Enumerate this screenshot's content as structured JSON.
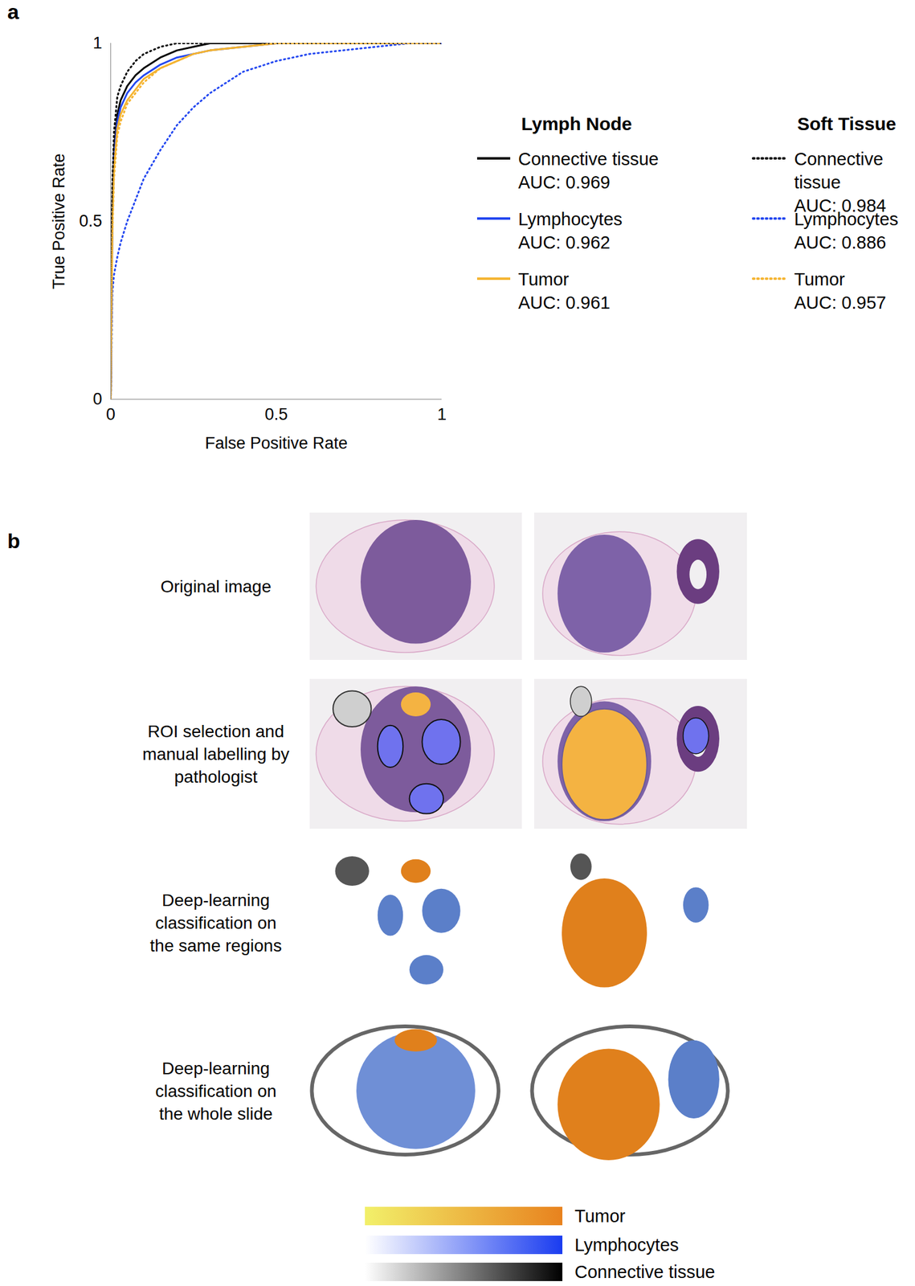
{
  "chart_data": {
    "type": "line",
    "panel": "a",
    "x_label": "False Positive Rate",
    "y_label": "True Positive Rate",
    "x": [
      0,
      0.005,
      0.01,
      0.02,
      0.03,
      0.05,
      0.075,
      0.1,
      0.15,
      0.2,
      0.25,
      0.3,
      0.4,
      0.5,
      0.6,
      0.7,
      0.8,
      0.9,
      1
    ],
    "xlim": [
      0,
      1
    ],
    "ylim": [
      0,
      1
    ],
    "xticks": [
      0,
      0.5,
      1
    ],
    "yticks": [
      0,
      0.5,
      1
    ],
    "grid": false,
    "series": [
      {
        "name": "Connective tissue",
        "group": "Lymph Node",
        "auc_text": "AUC: 0.969",
        "color": "#000000",
        "line_style": "solid",
        "values": [
          0,
          0.55,
          0.7,
          0.8,
          0.84,
          0.88,
          0.91,
          0.93,
          0.96,
          0.98,
          0.99,
          1,
          1,
          1,
          1,
          1,
          1,
          1,
          1
        ]
      },
      {
        "name": "Lymphocytes",
        "group": "Lymph Node",
        "auc_text": "AUC: 0.962",
        "color": "#2448f0",
        "line_style": "solid",
        "values": [
          0,
          0.5,
          0.68,
          0.78,
          0.82,
          0.86,
          0.89,
          0.91,
          0.94,
          0.96,
          0.97,
          0.98,
          0.99,
          1,
          1,
          1,
          1,
          1,
          1
        ]
      },
      {
        "name": "Tumor",
        "group": "Lymph Node",
        "auc_text": "AUC: 0.961",
        "color": "#f5b431",
        "line_style": "solid",
        "values": [
          0,
          0.5,
          0.65,
          0.76,
          0.8,
          0.84,
          0.87,
          0.9,
          0.93,
          0.95,
          0.97,
          0.98,
          0.99,
          1,
          1,
          1,
          1,
          1,
          1
        ]
      },
      {
        "name": "Connective tissue",
        "group": "Soft Tissue",
        "auc_text": "AUC: 0.984",
        "color": "#000000",
        "line_style": "dotted",
        "values": [
          0,
          0.6,
          0.75,
          0.85,
          0.88,
          0.92,
          0.95,
          0.97,
          0.99,
          1,
          1,
          1,
          1,
          1,
          1,
          1,
          1,
          1,
          1
        ]
      },
      {
        "name": "Lymphocytes",
        "group": "Soft Tissue",
        "auc_text": "AUC: 0.886",
        "color": "#2448f0",
        "line_style": "dotted",
        "values": [
          0,
          0.3,
          0.35,
          0.4,
          0.44,
          0.5,
          0.56,
          0.62,
          0.7,
          0.77,
          0.82,
          0.86,
          0.92,
          0.95,
          0.97,
          0.98,
          0.99,
          1,
          1
        ]
      },
      {
        "name": "Tumor",
        "group": "Soft Tissue",
        "auc_text": "AUC: 0.957",
        "color": "#f5b431",
        "line_style": "dotted",
        "values": [
          0,
          0.45,
          0.62,
          0.74,
          0.78,
          0.83,
          0.86,
          0.89,
          0.93,
          0.95,
          0.97,
          0.98,
          0.99,
          1,
          1,
          1,
          1,
          1,
          1
        ]
      }
    ]
  },
  "panel_b": {
    "panel": "b",
    "rows": [
      {
        "label_lines": [
          "Original image"
        ]
      },
      {
        "label_lines": [
          "ROI selection and",
          "manual labelling by",
          "pathologist"
        ]
      },
      {
        "label_lines": [
          "Deep-learning",
          "classification on",
          "the same regions"
        ]
      },
      {
        "label_lines": [
          "Deep-learning",
          "classification on",
          "the whole slide"
        ]
      }
    ],
    "color_key": [
      {
        "label": "Tumor",
        "colors": [
          "#f2f06a",
          "#e8821e"
        ]
      },
      {
        "label": "Lymphocytes",
        "colors": [
          "#ffffff",
          "#1a3cf0"
        ]
      },
      {
        "label": "Connective tissue",
        "colors": [
          "#ffffff",
          "#000000"
        ]
      }
    ]
  }
}
